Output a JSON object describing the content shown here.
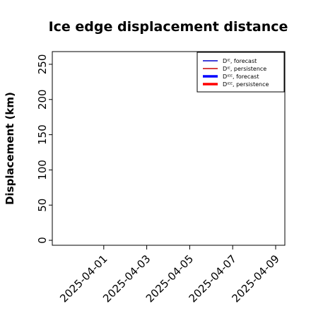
{
  "chart_data": {
    "type": "line",
    "title": "Ice edge displacement distance",
    "xlabel": "",
    "ylabel": "Displacement (km)",
    "ylim": [
      0,
      260
    ],
    "yticks": [
      0,
      50,
      100,
      150,
      200,
      250
    ],
    "xlim": [
      "2025-03-30",
      "2025-04-09"
    ],
    "xticks": [
      "2025-04-01",
      "2025-04-03",
      "2025-04-05",
      "2025-04-07",
      "2025-04-09"
    ],
    "highlight_tick": "2025-04-01",
    "highlight_color": "#2ca02c",
    "grid": false,
    "legend_position": "top-right",
    "series": [
      {
        "name": "Dᴵᴱ, forecast",
        "color": "#0000cc",
        "linewidth": "thin",
        "values": []
      },
      {
        "name": "Dᴵᴱ, persistence",
        "color": "#cc0000",
        "linewidth": "thin",
        "values": []
      },
      {
        "name": "Dᴵᴱᴱ, forecast",
        "color": "#0000ff",
        "linewidth": "thick",
        "values": []
      },
      {
        "name": "Dᴵᴱᴱ, persistence",
        "color": "#ff0000",
        "linewidth": "thick",
        "values": []
      }
    ]
  }
}
